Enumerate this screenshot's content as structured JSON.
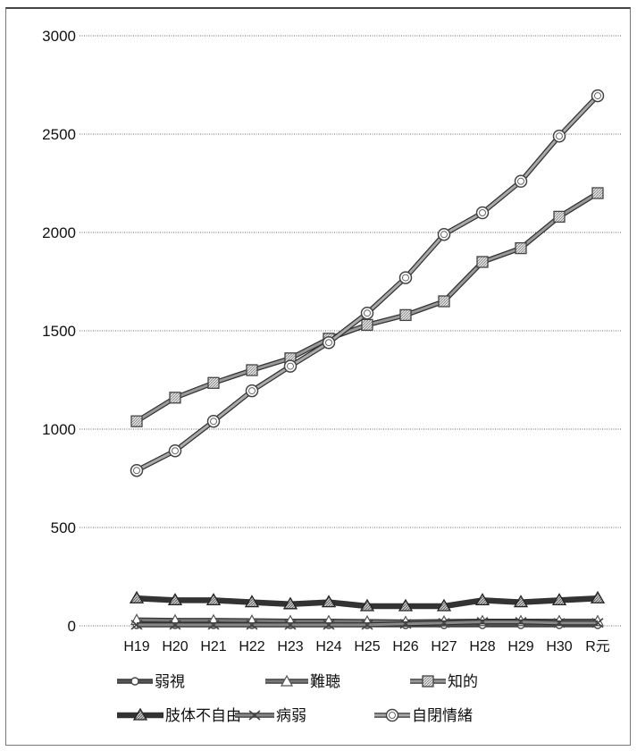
{
  "chart_data": {
    "type": "line",
    "title": "",
    "xlabel": "",
    "ylabel": "",
    "ylim": [
      0,
      3000
    ],
    "yticks": [
      0,
      500,
      1000,
      1500,
      2000,
      2500,
      3000
    ],
    "grid": "horizontal dotted",
    "legend_position": "bottom",
    "categories": [
      "H19",
      "H20",
      "H21",
      "H22",
      "H23",
      "H24",
      "H25",
      "H26",
      "H27",
      "H28",
      "H29",
      "H30",
      "R元"
    ],
    "series": [
      {
        "name": "弱視",
        "marker": "circle-small",
        "color": "#555555",
        "values": [
          5,
          5,
          5,
          5,
          5,
          5,
          5,
          5,
          5,
          5,
          5,
          5,
          5
        ]
      },
      {
        "name": "難聴",
        "marker": "triangle",
        "color": "#777777",
        "values": [
          30,
          28,
          28,
          26,
          24,
          24,
          22,
          20,
          22,
          24,
          24,
          24,
          24
        ]
      },
      {
        "name": "知的",
        "marker": "square",
        "color": "#999999",
        "values": [
          1040,
          1160,
          1235,
          1300,
          1360,
          1460,
          1530,
          1580,
          1650,
          1850,
          1920,
          2080,
          2200
        ]
      },
      {
        "name": "肢体不自由",
        "marker": "triangle-filled",
        "color": "#333333",
        "values": [
          140,
          130,
          130,
          120,
          110,
          120,
          100,
          100,
          100,
          130,
          120,
          130,
          140
        ]
      },
      {
        "name": "病弱",
        "marker": "x",
        "color": "#888888",
        "values": [
          5,
          5,
          5,
          5,
          5,
          5,
          5,
          10,
          15,
          20,
          20,
          15,
          15
        ]
      },
      {
        "name": "自閉情緒",
        "marker": "circle",
        "color": "#aaaaaa",
        "values": [
          790,
          890,
          1040,
          1195,
          1320,
          1440,
          1590,
          1770,
          1990,
          2100,
          2260,
          2490,
          2695
        ]
      }
    ]
  }
}
